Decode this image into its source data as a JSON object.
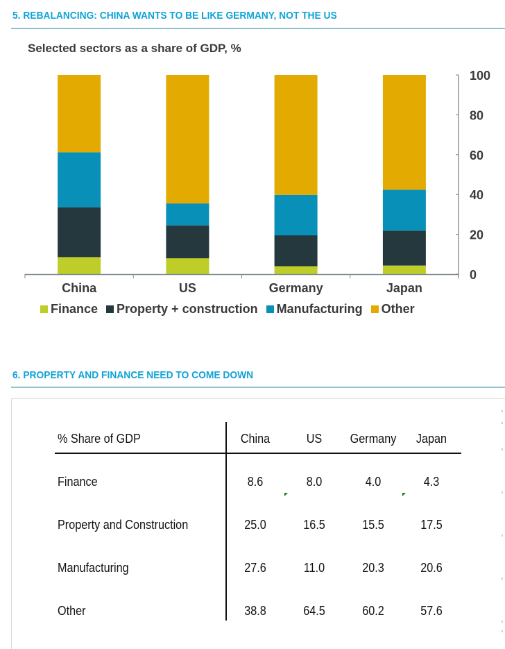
{
  "section5": {
    "title": "5. REBALANCING: CHINA WANTS TO BE LIKE GERMANY, NOT THE US",
    "subtitle": "Selected sectors as a share of GDP, %"
  },
  "section6": {
    "title": "6. PROPERTY AND FINANCE NEED TO COME DOWN"
  },
  "chart_data": {
    "type": "bar",
    "stacked": true,
    "title": "Selected sectors as a share of GDP, %",
    "categories": [
      "China",
      "US",
      "Germany",
      "Japan"
    ],
    "series": [
      {
        "name": "Finance",
        "color": "#bfcd28",
        "values": [
          8.6,
          8.0,
          4.0,
          4.3
        ]
      },
      {
        "name": "Property + construction",
        "color": "#24383d",
        "values": [
          25.0,
          16.5,
          15.5,
          17.5
        ]
      },
      {
        "name": "Manufacturing",
        "color": "#0890b8",
        "values": [
          27.6,
          11.0,
          20.3,
          20.6
        ]
      },
      {
        "name": "Other",
        "color": "#e3ab02",
        "values": [
          38.8,
          64.5,
          60.2,
          57.6
        ]
      }
    ],
    "xlabel": "",
    "ylabel": "",
    "ylim": [
      0,
      100
    ],
    "yticks": [
      "0",
      "20",
      "40",
      "60",
      "80",
      "100"
    ],
    "y_axis_side": "right",
    "grid": false,
    "legend_position": "bottom"
  },
  "table": {
    "header": "% Share of GDP",
    "columns": [
      "China",
      "US",
      "Germany",
      "Japan"
    ],
    "rows": [
      {
        "label": "Finance",
        "values": [
          "8.6",
          "8.0",
          "4.0",
          "4.3"
        ]
      },
      {
        "label": "Property and Construction",
        "values": [
          "25.0",
          "16.5",
          "15.5",
          "17.5"
        ]
      },
      {
        "label": "Manufacturing",
        "values": [
          "27.6",
          "11.0",
          "20.3",
          "20.6"
        ]
      },
      {
        "label": "Other",
        "values": [
          "38.8",
          "64.5",
          "60.2",
          "57.6"
        ]
      }
    ]
  }
}
